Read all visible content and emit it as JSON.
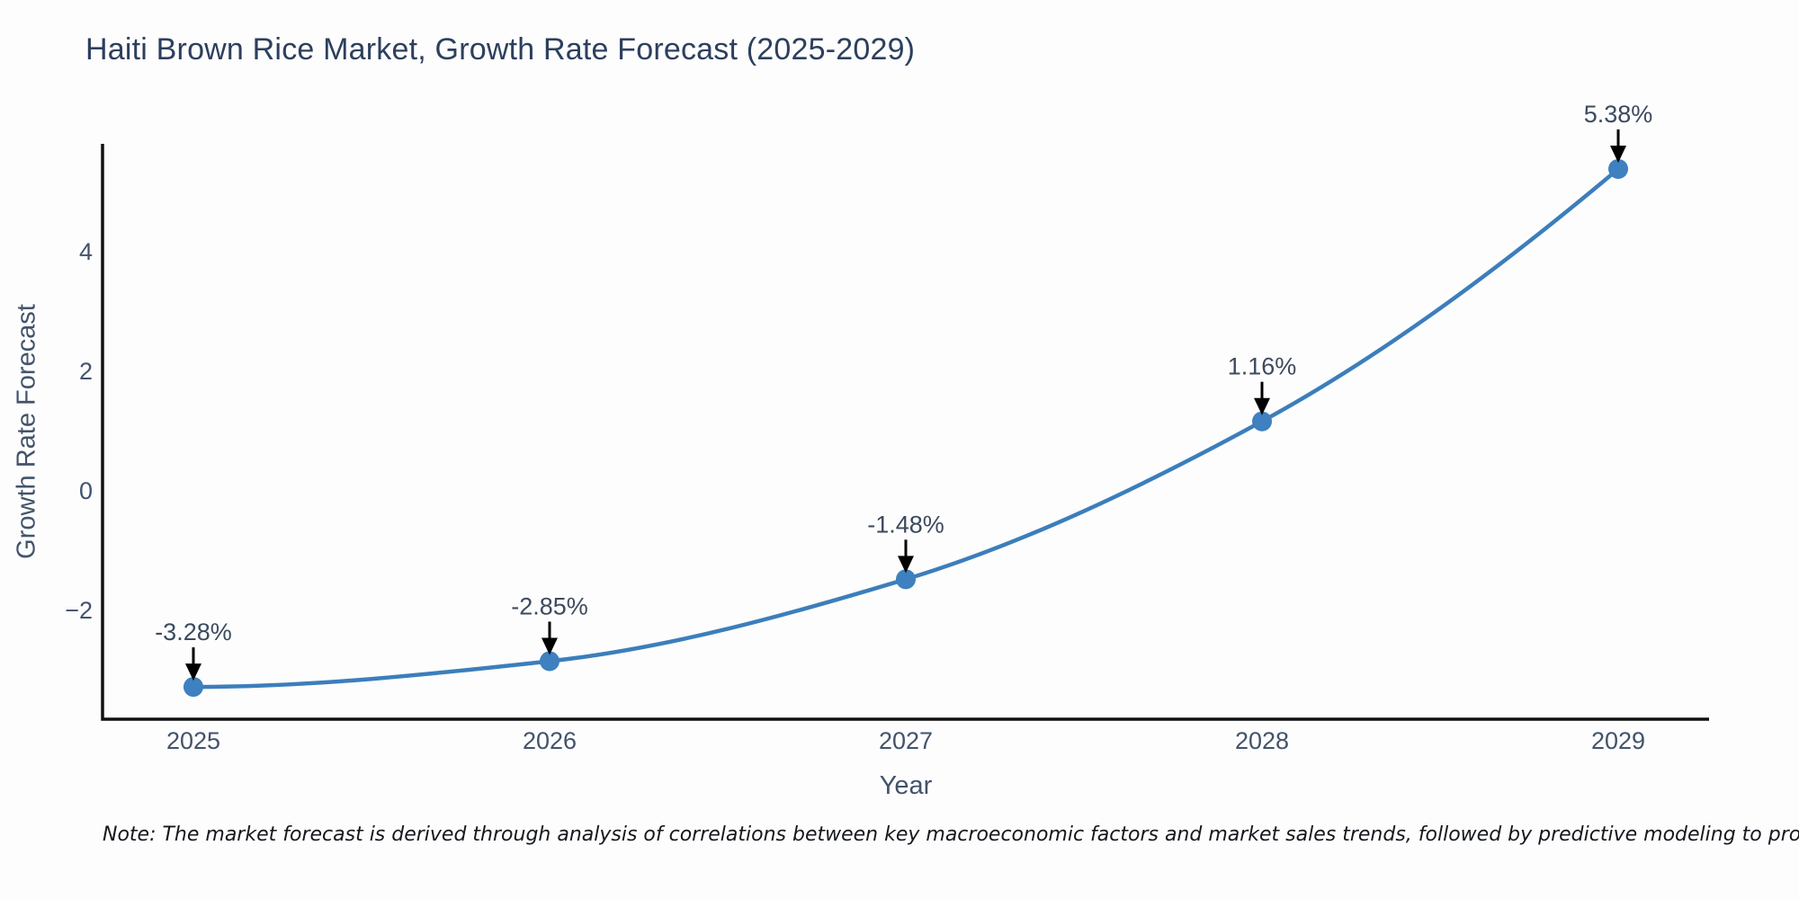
{
  "title": "Haiti Brown Rice Market, Growth Rate Forecast (2025-2029)",
  "footnote": "Note: The market forecast is derived through analysis of correlations between key macroeconomic factors and market sales trends, followed by predictive modeling to project future sales",
  "chart_data": {
    "type": "line",
    "title": "Haiti Brown Rice Market, Growth Rate Forecast (2025-2029)",
    "xlabel": "Year",
    "ylabel": "Growth Rate Forecast",
    "x": [
      2025,
      2026,
      2027,
      2028,
      2029
    ],
    "values": [
      -3.28,
      -2.85,
      -1.48,
      1.16,
      5.38
    ],
    "point_labels": [
      "-3.28%",
      "-2.85%",
      "-1.48%",
      "1.16%",
      "5.38%"
    ],
    "xticks": [
      2025,
      2026,
      2027,
      2028,
      2029
    ],
    "yticks": [
      -2,
      0,
      2,
      4
    ],
    "xlim": [
      2024.745,
      2029.255
    ],
    "ylim": [
      -3.82,
      5.8
    ],
    "grid": false,
    "legend": "none",
    "smooth": true,
    "annotations": "value labels with downward arrows above each point",
    "colors": {
      "line": "#3c7ebb",
      "marker": "#3e80c0",
      "axis": "#111111",
      "arrow": "#000000"
    }
  }
}
